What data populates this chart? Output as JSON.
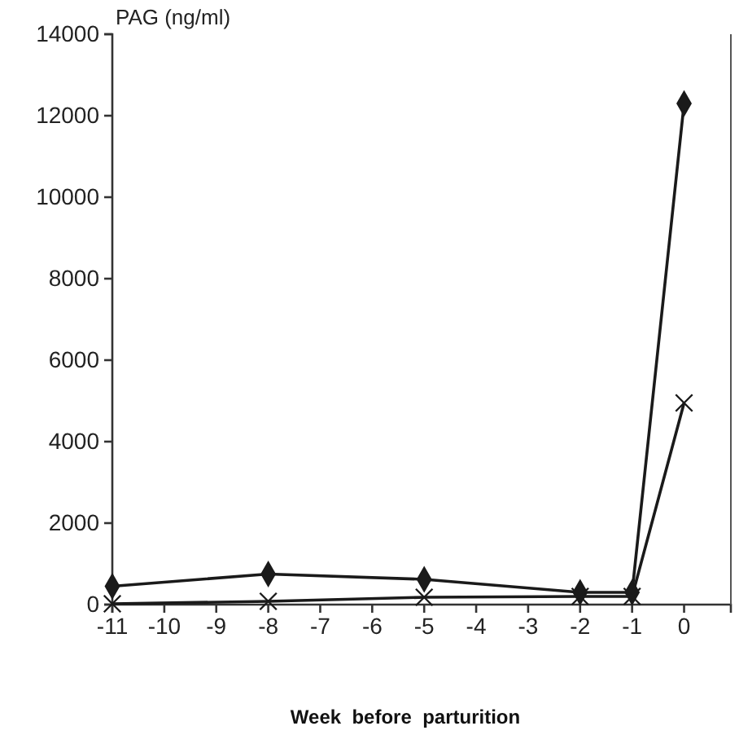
{
  "chart_data": {
    "type": "line",
    "ylabel": "PAG (ng/ml)",
    "xlabel": "Week  before  parturition",
    "x": [
      -11,
      -8,
      -5,
      -2,
      -1,
      0
    ],
    "xlim": [
      -11,
      0.9
    ],
    "xticks": [
      -11,
      -10,
      -9,
      -8,
      -7,
      -6,
      -5,
      -4,
      -3,
      -2,
      -1,
      0
    ],
    "ylim": [
      0,
      14000
    ],
    "yticks": [
      0,
      2000,
      4000,
      6000,
      8000,
      10000,
      12000,
      14000
    ],
    "grid": false,
    "series": [
      {
        "color": "#1a1a1a",
        "marker": "diamond",
        "values": [
          450,
          750,
          620,
          300,
          300,
          12300
        ]
      },
      {
        "color": "#1a1a1a",
        "marker": "cross",
        "values": [
          20,
          80,
          180,
          200,
          200,
          4950
        ]
      }
    ]
  }
}
